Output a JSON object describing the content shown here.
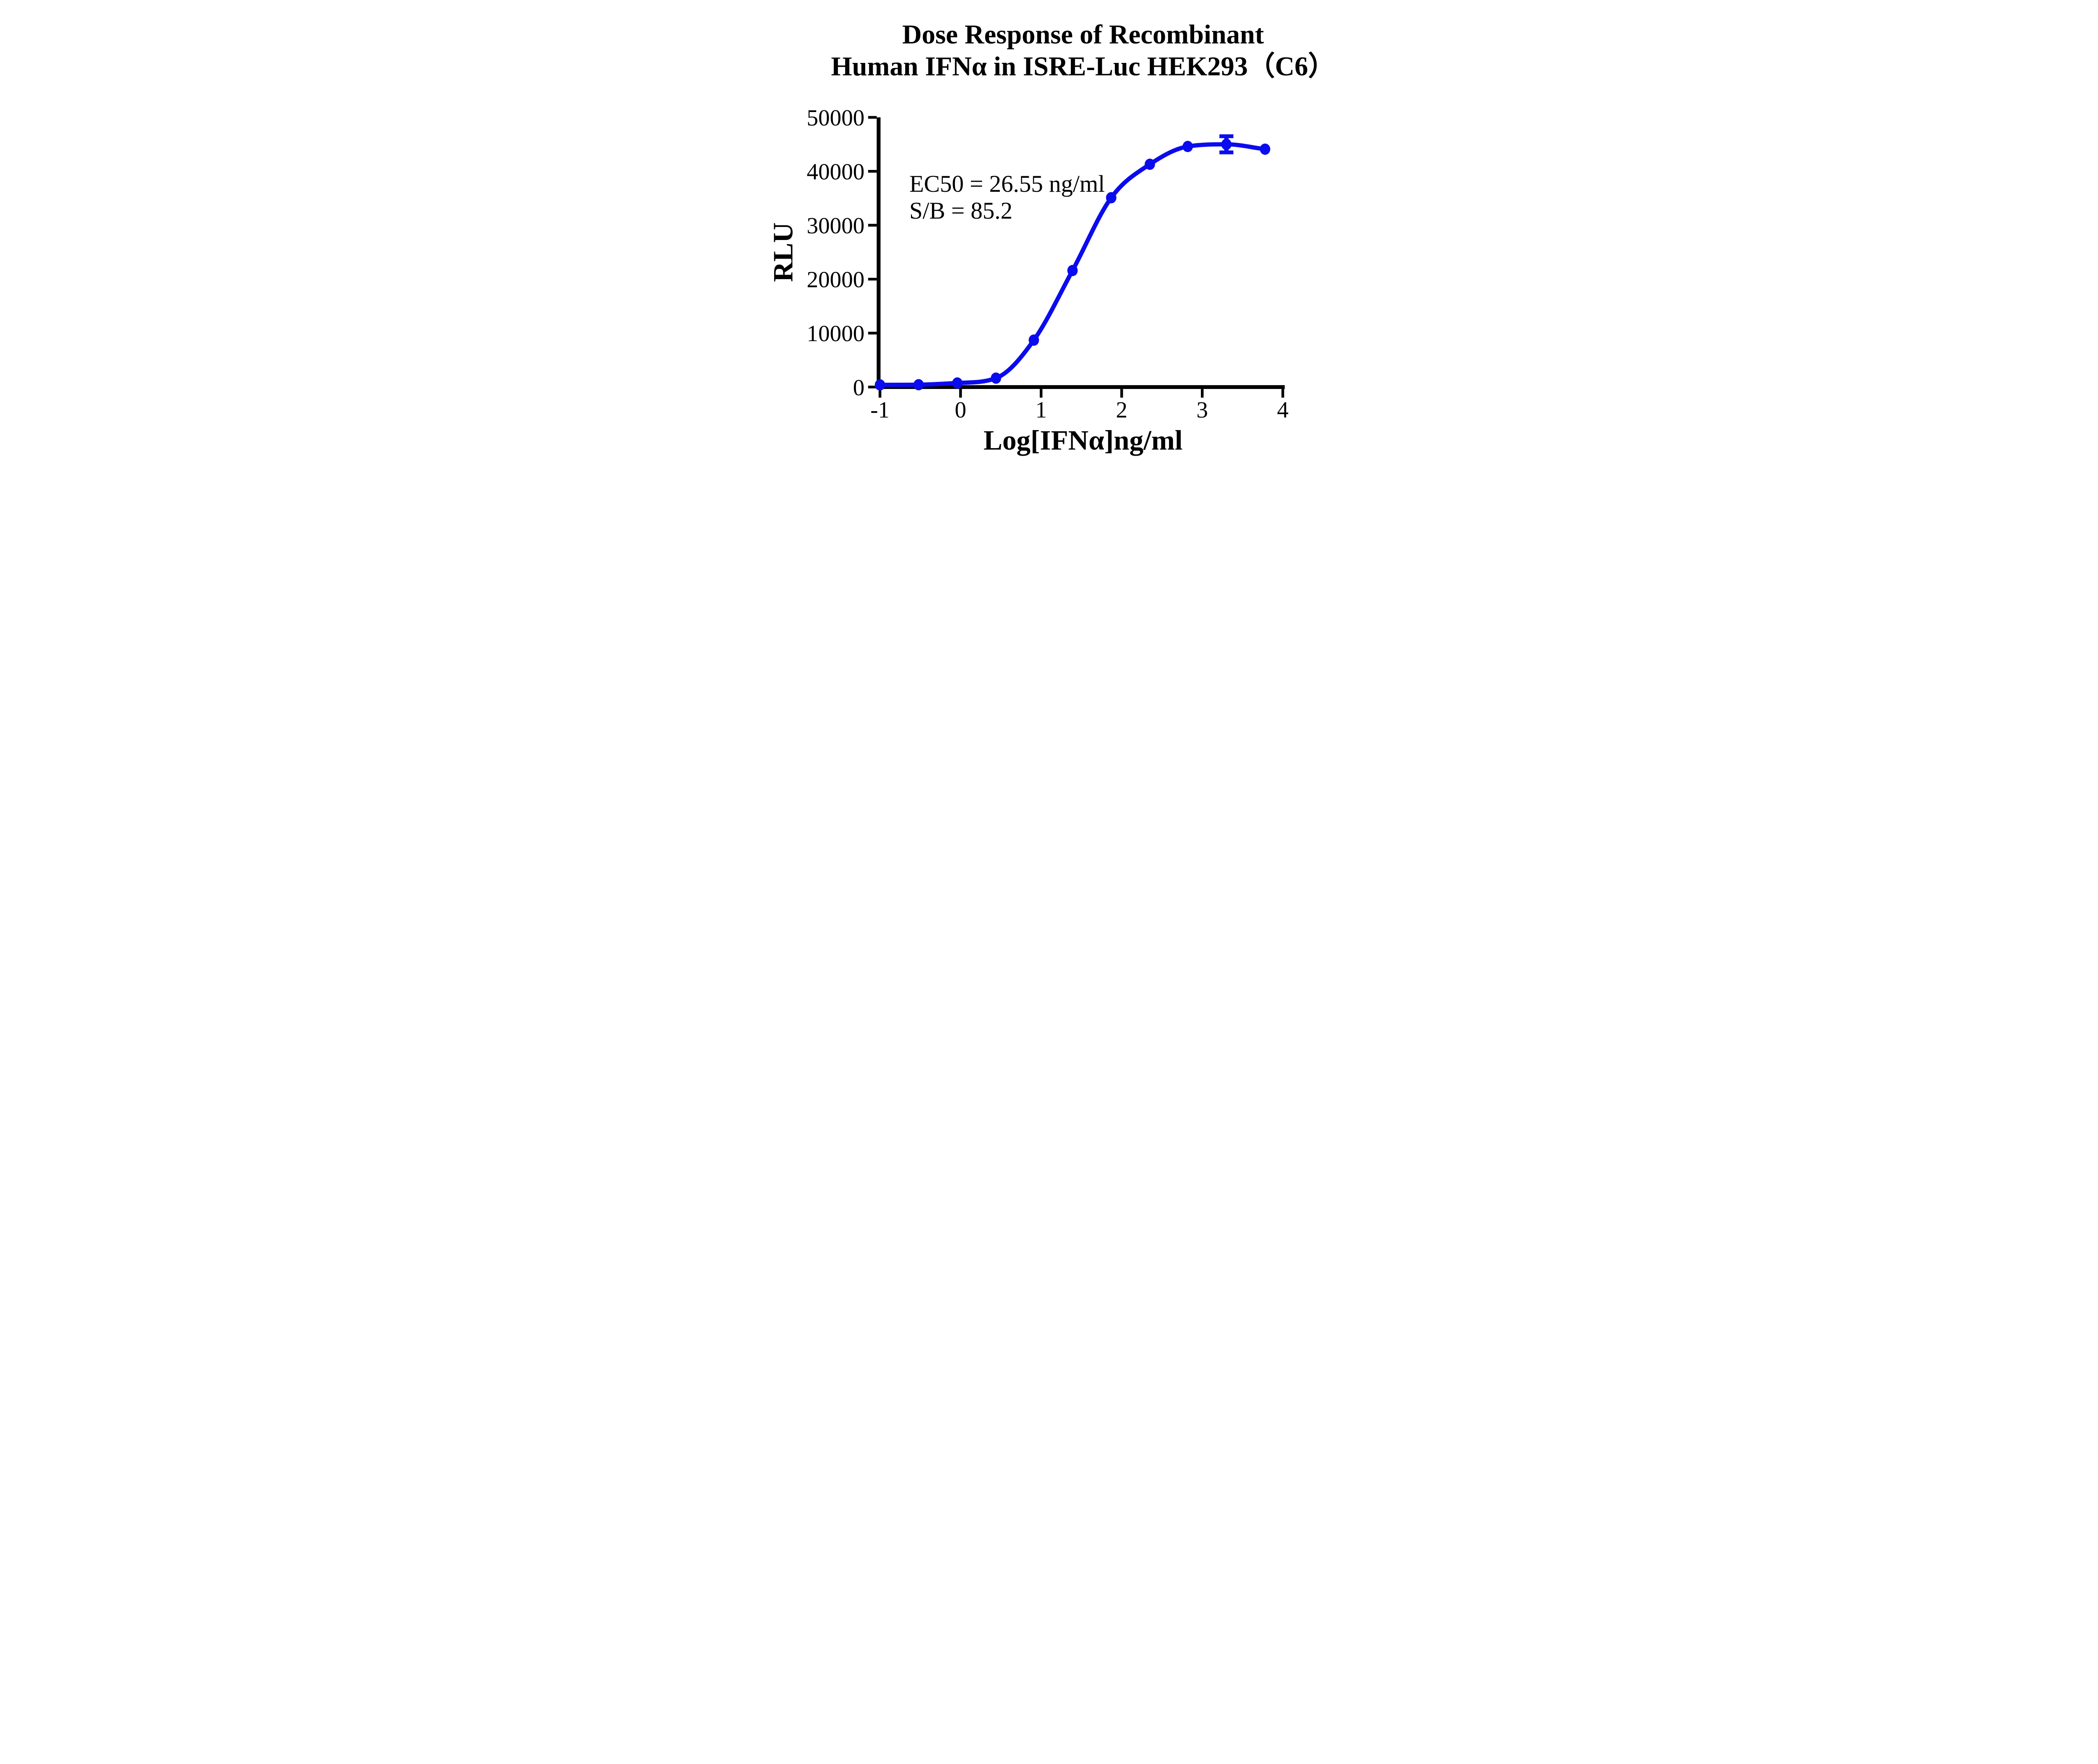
{
  "figure": {
    "title_line1": "Dose Response of Recombinant",
    "title_line2": "Human IFNα in ISRE-Luc HEK293（C6）"
  },
  "chart_data": {
    "type": "scatter",
    "title": "Dose Response of Recombinant Human IFNα in ISRE-Luc HEK293（C6）",
    "title_lines": [
      "Dose Response of Recombinant",
      "Human IFNα in ISRE-Luc HEK293（C6）"
    ],
    "xlabel": "Log[IFNα]ng/ml",
    "ylabel": "RLU",
    "xlim": [
      -1,
      4
    ],
    "ylim": [
      0,
      50000
    ],
    "x_ticks": [
      -1,
      0,
      1,
      2,
      3,
      4
    ],
    "y_ticks": [
      0,
      10000,
      20000,
      30000,
      40000,
      50000
    ],
    "grid": false,
    "legend_position": "none",
    "annotations": [
      {
        "text": "EC50 = 26.55 ng/ml"
      },
      {
        "text": "S/B = 85.2"
      }
    ],
    "series": [
      {
        "name": "Recombinant Human IFNα",
        "color": "#0B0BEF",
        "marker": "filled-circle",
        "fit": "sigmoidal dose-response curve through points",
        "x": [
          -1.0,
          -0.52,
          -0.04,
          0.44,
          0.91,
          1.39,
          1.87,
          2.35,
          2.82,
          3.3,
          3.78
        ],
        "y": [
          400,
          430,
          750,
          1650,
          8700,
          21600,
          35100,
          41300,
          44600,
          45000,
          44100
        ],
        "error_sd": [
          0,
          0,
          0,
          0,
          0,
          0,
          0,
          0,
          0,
          1500,
          0
        ],
        "ec50_ng_ml": 26.55,
        "signal_to_background": 85.2
      }
    ]
  }
}
